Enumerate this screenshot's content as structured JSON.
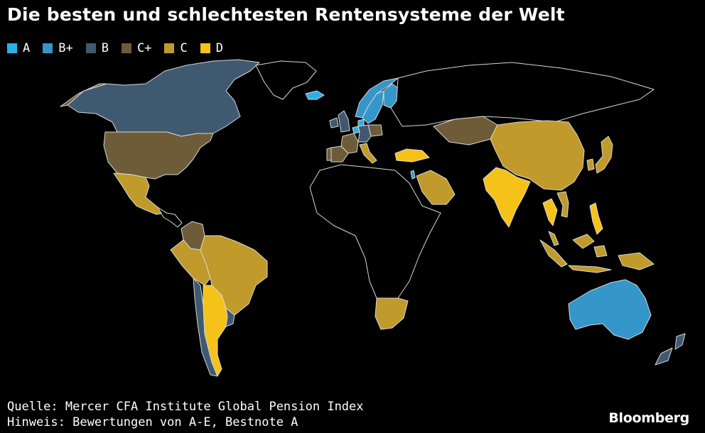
{
  "title": "Die besten und schlechtesten Rentensysteme der Welt",
  "legend": [
    {
      "label": "A",
      "color": "#2ab0e8"
    },
    {
      "label": "B+",
      "color": "#3496c9"
    },
    {
      "label": "B",
      "color": "#3f5a70"
    },
    {
      "label": "C+",
      "color": "#6e5c38"
    },
    {
      "label": "C",
      "color": "#c09a2a"
    },
    {
      "label": "D",
      "color": "#f5c21a"
    }
  ],
  "colors": {
    "background": "#000000",
    "country_outline": "#d8d8d8",
    "no_data": "#000000"
  },
  "map": {
    "grades": {
      "Niederlande": "A",
      "Island": "A",
      "Dänemark": "A",
      "Australien": "B+",
      "Israel": "B+",
      "Finnland": "B+",
      "Norwegen": "B+",
      "Schweden": "B+",
      "Kanada": "B",
      "Chile": "B",
      "Neuseeland": "B",
      "Uruguay": "B",
      "Irland": "B",
      "Vereinigtes Königreich": "B",
      "Deutschland": "B",
      "Schweiz": "B",
      "Belgien": "B",
      "USA": "C+",
      "Kolumbien": "C+",
      "Kasachstan": "C+",
      "Frankreich": "C+",
      "Spanien": "C+",
      "Portugal": "C+",
      "Österreich": "C+",
      "Polen": "C+",
      "Mexiko": "C",
      "Peru": "C",
      "Brasilien": "C",
      "China": "C",
      "Japan": "C",
      "Südkorea": "C",
      "Saudi-Arabien": "C",
      "Südafrika": "C",
      "Indonesien": "C",
      "Malaysia": "C",
      "Vietnam": "C",
      "Italien": "C",
      "Argentinien": "D",
      "Indien": "D",
      "Türkei": "D",
      "Thailand": "D",
      "Philippinen": "D"
    }
  },
  "footer": {
    "source": "Quelle: Mercer CFA Institute Global Pension Index",
    "note": "Hinweis: Bewertungen von A-E, Bestnote A"
  },
  "brand": "Bloomberg"
}
